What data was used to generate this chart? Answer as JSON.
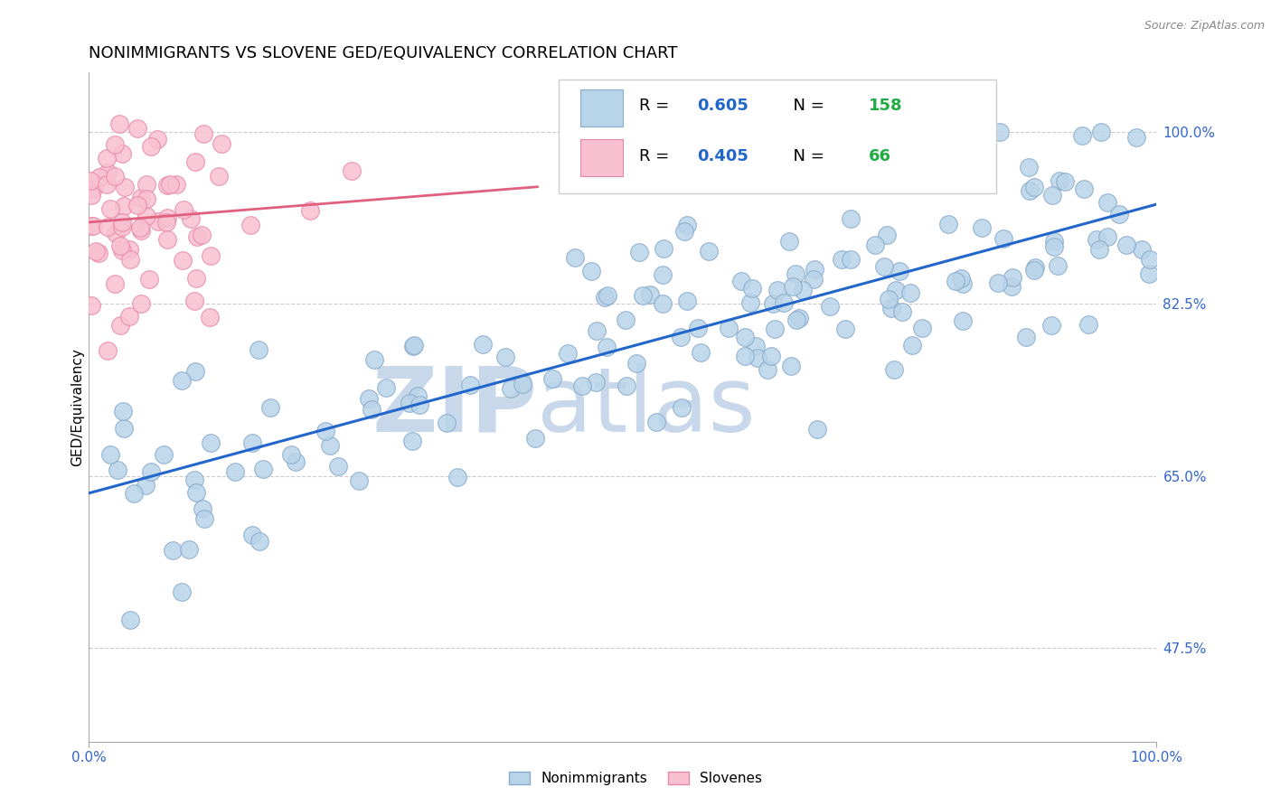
{
  "title": "NONIMMIGRANTS VS SLOVENE GED/EQUIVALENCY CORRELATION CHART",
  "source_text": "Source: ZipAtlas.com",
  "ylabel": "GED/Equivalency",
  "blue_label": "Nonimmigrants",
  "pink_label": "Slovenes",
  "blue_R": 0.605,
  "blue_N": 158,
  "pink_R": 0.405,
  "pink_N": 66,
  "blue_color": "#b8d4e8",
  "blue_edge_color": "#88aacc",
  "pink_color": "#f8c0d0",
  "pink_edge_color": "#e888a8",
  "blue_line_color": "#2266cc",
  "pink_line_color": "#e06080",
  "legend_r_color": "#2266cc",
  "legend_n_color": "#22aa44",
  "xlim": [
    0.0,
    1.0
  ],
  "ylim": [
    0.38,
    1.06
  ],
  "yticks": [
    0.475,
    0.65,
    0.825,
    1.0
  ],
  "ytick_labels": [
    "47.5%",
    "65.0%",
    "82.5%",
    "100.0%"
  ],
  "xticks": [
    0.0,
    1.0
  ],
  "xtick_labels": [
    "0.0%",
    "100.0%"
  ],
  "grid_color": "#cccccc",
  "watermark_zip": "ZIP",
  "watermark_atlas": "atlas",
  "watermark_color": "#c8d8ea",
  "title_fontsize": 13,
  "axis_fontsize": 11,
  "tick_fontsize": 11,
  "legend_fontsize": 13
}
